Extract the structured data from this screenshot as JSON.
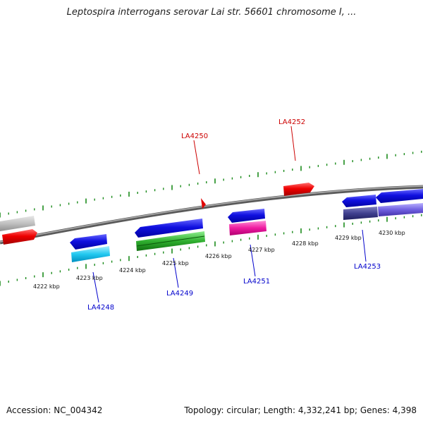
{
  "title": "Leptospira interrogans serovar Lai str. 56601 chromosome I, ...",
  "footer": {
    "accession": "Accession: NC_004342",
    "summary": "Topology: circular; Length: 4,332,241 bp; Genes: 4,398"
  },
  "colors": {
    "backbone": "#8a8a8a",
    "tick": "#1a8a1a",
    "forward_label": "#cc0000",
    "reverse_label": "#0000cc"
  },
  "kbp_labels": [
    "4222 kbp",
    "4223 kbp",
    "4224 kbp",
    "4225 kbp",
    "4226 kbp",
    "4227 kbp",
    "4228 kbp",
    "4229 kbp",
    "4230 kbp"
  ],
  "gene_labels": [
    {
      "id": "LA4250",
      "strand": "forward"
    },
    {
      "id": "LA4252",
      "strand": "forward"
    },
    {
      "id": "LA4248",
      "strand": "reverse"
    },
    {
      "id": "LA4249",
      "strand": "reverse"
    },
    {
      "id": "LA4251",
      "strand": "reverse"
    },
    {
      "id": "LA4253",
      "strand": "reverse"
    }
  ]
}
